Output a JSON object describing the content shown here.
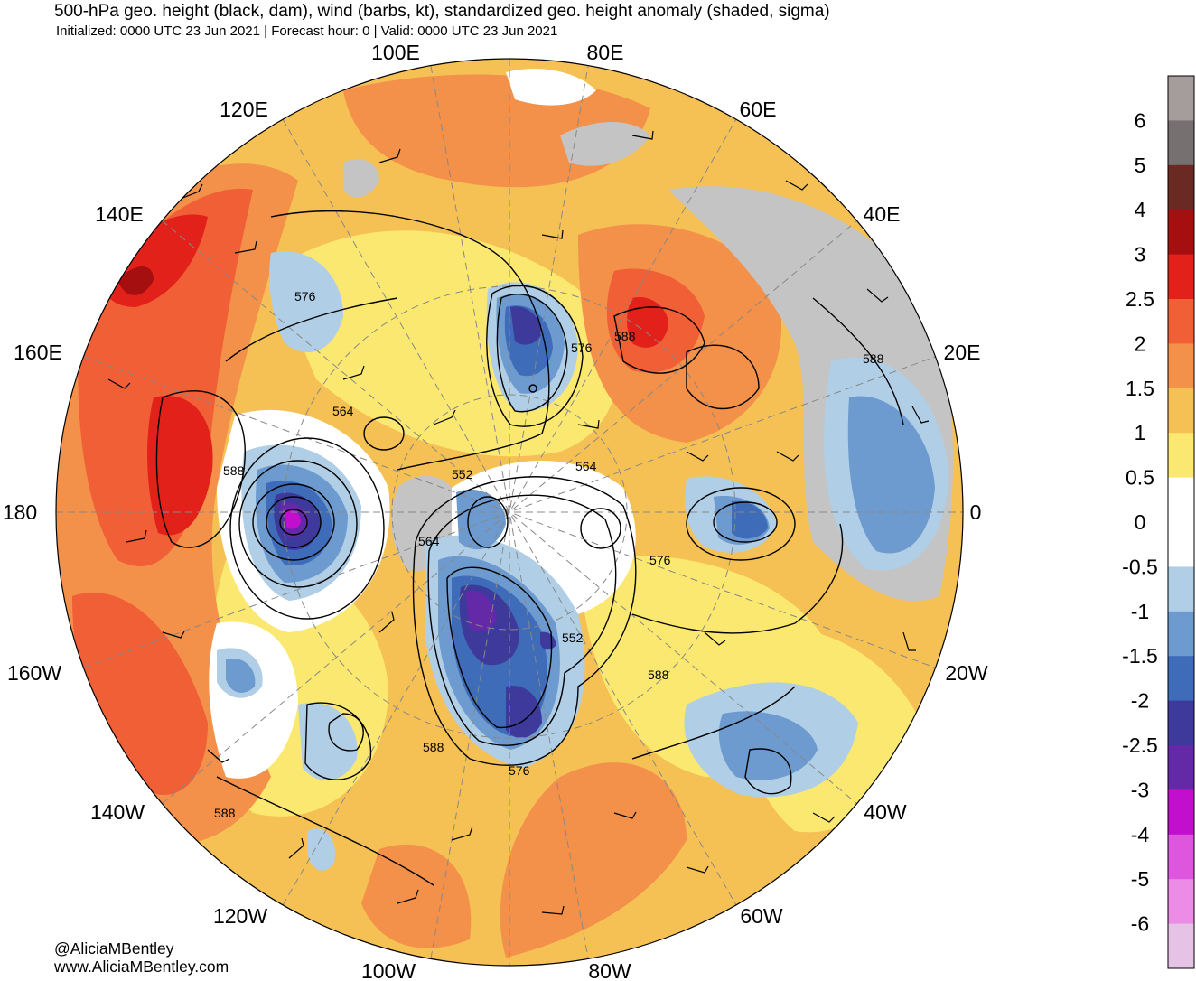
{
  "header": {
    "title": "500-hPa geo. height (black, dam), wind (barbs, kt), standardized geo. height anomaly (shaded, sigma)",
    "subtitle": "Initialized: 0000 UTC 23 Jun 2021 | Forecast hour: 0 | Valid: 0000 UTC 23 Jun 2021"
  },
  "credits": {
    "twitter": "@AliciaMBentley",
    "website": "www.AliciaMBentley.com"
  },
  "map": {
    "projection": "north-polar-stereographic",
    "longitude_labels": [
      "100E",
      "80E",
      "120E",
      "60E",
      "140E",
      "40E",
      "160E",
      "20E",
      "180",
      "0",
      "160W",
      "20W",
      "140W",
      "40W",
      "120W",
      "60W",
      "100W",
      "80W"
    ],
    "contour_labels": [
      "576",
      "588",
      "576",
      "588",
      "564",
      "588",
      "552",
      "564",
      "564",
      "576",
      "552",
      "588",
      "588",
      "576",
      "588"
    ],
    "colors": {
      "land_gray": "#c4c4c4",
      "contour": "#000000"
    }
  },
  "colorbar": {
    "labels": [
      "6",
      "5",
      "4",
      "3",
      "2.5",
      "2",
      "1.5",
      "1",
      "0.5",
      "0",
      "-0.5",
      "-1",
      "-1.5",
      "-2",
      "-2.5",
      "-3",
      "-4",
      "-5",
      "-6"
    ],
    "colors": [
      "#a59c9c",
      "#777070",
      "#6a2a23",
      "#a50f0f",
      "#e2211b",
      "#f05f35",
      "#f3904a",
      "#f5c154",
      "#fbe870",
      "#ffffff",
      "#ffffff",
      "#b0cfe6",
      "#6d9bd0",
      "#3e6cb8",
      "#3e3a9c",
      "#6429a6",
      "#c20fcd",
      "#de55de",
      "#ec8ce6",
      "#e6c3e6"
    ]
  }
}
